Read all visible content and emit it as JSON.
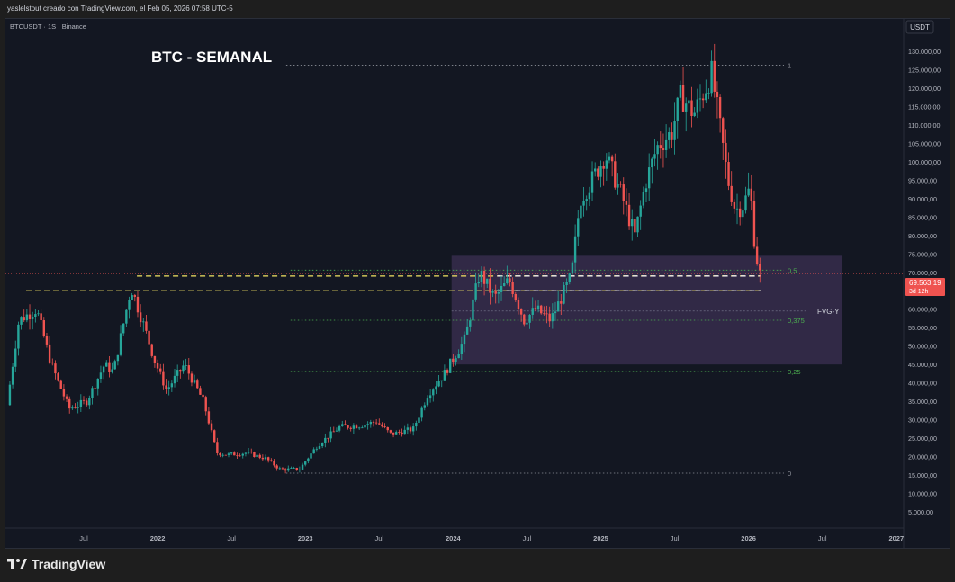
{
  "header": {
    "attribution": "yaslelstout creado con TradingView.com, el Feb 05, 2026 07:58 UTC-5"
  },
  "footer": {
    "brand": "TradingView"
  },
  "chart_data": {
    "type": "candlestick",
    "symbol_label": "BTCUSDT · 1S · Binance",
    "title": "BTC - SEMANAL",
    "currency": "USDT",
    "y_ticks": [
      5000,
      10000,
      15000,
      20000,
      25000,
      30000,
      35000,
      40000,
      45000,
      50000,
      55000,
      60000,
      65000,
      70000,
      75000,
      80000,
      85000,
      90000,
      95000,
      100000,
      105000,
      110000,
      115000,
      120000,
      125000,
      130000
    ],
    "y_tick_labels": [
      "5.000,00",
      "10.000,00",
      "15.000,00",
      "20.000,00",
      "25.000,00",
      "30.000,00",
      "35.000,00",
      "40.000,00",
      "45.000,00",
      "50.000,00",
      "55.000,00",
      "60.000,00",
      "65.000,00",
      "70.000,00",
      "75.000,00",
      "80.000,00",
      "85.000,00",
      "90.000,00",
      "95.000,00",
      "100.000,00",
      "105.000,00",
      "110.000,00",
      "115.000,00",
      "120.000,00",
      "125.000,00",
      "130.000,00"
    ],
    "x_ticks": [
      {
        "label": "Jul",
        "t": 2021.5
      },
      {
        "label": "2022",
        "t": 2022.0
      },
      {
        "label": "Jul",
        "t": 2022.5
      },
      {
        "label": "2023",
        "t": 2023.0
      },
      {
        "label": "Jul",
        "t": 2023.5
      },
      {
        "label": "2024",
        "t": 2024.0
      },
      {
        "label": "Jul",
        "t": 2024.5
      },
      {
        "label": "2025",
        "t": 2025.0
      },
      {
        "label": "Jul",
        "t": 2025.5
      },
      {
        "label": "2026",
        "t": 2026.0
      },
      {
        "label": "Jul",
        "t": 2026.5
      },
      {
        "label": "2027",
        "t": 2027.0
      }
    ],
    "current_price": {
      "value": 69563.19,
      "label": "69.563,19",
      "countdown": "3d 12h"
    },
    "fib_levels": [
      {
        "label": "1",
        "value": 126200
      },
      {
        "label": "0,5",
        "value": 70600
      },
      {
        "label": "0,375",
        "value": 57000
      },
      {
        "label": "0,25",
        "value": 43100
      },
      {
        "label": "0",
        "value": 15500
      }
    ],
    "fvg_zone": {
      "label": "FVG-Y",
      "top": 74500,
      "bottom": 45000,
      "mid": 59500,
      "t_start": 2023.99,
      "t_end": 2026.63
    },
    "levels": [
      {
        "value": 69000,
        "color": "#f5e663",
        "t_start": 2021.86
      },
      {
        "value": 65000,
        "color": "#f5e663",
        "t_start": 2021.11
      },
      {
        "value": 69000,
        "color": "#ffffff",
        "t_start": 2024.3
      },
      {
        "value": 65000,
        "color": "#ffffff",
        "t_start": 2024.3
      }
    ],
    "colors": {
      "up": "#26a69a",
      "down": "#ef5350",
      "background": "#131722",
      "fvg": "#6b4a8a"
    },
    "price_path": [
      {
        "t": 2021.0,
        "v": 34000
      },
      {
        "t": 2021.08,
        "v": 57000
      },
      {
        "t": 2021.2,
        "v": 60000
      },
      {
        "t": 2021.3,
        "v": 45000
      },
      {
        "t": 2021.42,
        "v": 33000
      },
      {
        "t": 2021.54,
        "v": 35000
      },
      {
        "t": 2021.66,
        "v": 45000
      },
      {
        "t": 2021.72,
        "v": 43000
      },
      {
        "t": 2021.84,
        "v": 66000
      },
      {
        "t": 2021.93,
        "v": 55000
      },
      {
        "t": 2022.0,
        "v": 46000
      },
      {
        "t": 2022.08,
        "v": 38000
      },
      {
        "t": 2022.2,
        "v": 45000
      },
      {
        "t": 2022.33,
        "v": 35000
      },
      {
        "t": 2022.42,
        "v": 21000
      },
      {
        "t": 2022.5,
        "v": 20500
      },
      {
        "t": 2022.62,
        "v": 21000
      },
      {
        "t": 2022.75,
        "v": 19500
      },
      {
        "t": 2022.85,
        "v": 16500
      },
      {
        "t": 2022.98,
        "v": 16600
      },
      {
        "t": 2023.1,
        "v": 23000
      },
      {
        "t": 2023.25,
        "v": 28000
      },
      {
        "t": 2023.4,
        "v": 28500
      },
      {
        "t": 2023.5,
        "v": 29500
      },
      {
        "t": 2023.6,
        "v": 26000
      },
      {
        "t": 2023.75,
        "v": 27500
      },
      {
        "t": 2023.85,
        "v": 37000
      },
      {
        "t": 2023.96,
        "v": 42500
      },
      {
        "t": 2024.1,
        "v": 52000
      },
      {
        "t": 2024.2,
        "v": 70000
      },
      {
        "t": 2024.3,
        "v": 63000
      },
      {
        "t": 2024.4,
        "v": 68000
      },
      {
        "t": 2024.5,
        "v": 57000
      },
      {
        "t": 2024.58,
        "v": 60000
      },
      {
        "t": 2024.68,
        "v": 57000
      },
      {
        "t": 2024.82,
        "v": 69000
      },
      {
        "t": 2024.88,
        "v": 90000
      },
      {
        "t": 2024.96,
        "v": 95000
      },
      {
        "t": 2025.05,
        "v": 102000
      },
      {
        "t": 2025.15,
        "v": 92000
      },
      {
        "t": 2025.25,
        "v": 80000
      },
      {
        "t": 2025.32,
        "v": 94000
      },
      {
        "t": 2025.4,
        "v": 104000
      },
      {
        "t": 2025.5,
        "v": 108000
      },
      {
        "t": 2025.56,
        "v": 118000
      },
      {
        "t": 2025.65,
        "v": 113000
      },
      {
        "t": 2025.77,
        "v": 124000
      },
      {
        "t": 2025.82,
        "v": 111000
      },
      {
        "t": 2025.88,
        "v": 95000
      },
      {
        "t": 2025.93,
        "v": 87000
      },
      {
        "t": 2025.98,
        "v": 88000
      },
      {
        "t": 2026.03,
        "v": 93000
      },
      {
        "t": 2026.06,
        "v": 78000
      },
      {
        "t": 2026.09,
        "v": 69563
      }
    ]
  }
}
